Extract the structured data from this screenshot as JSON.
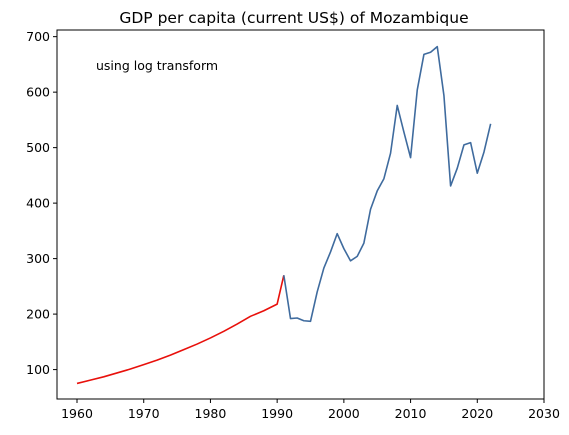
{
  "chart_data": {
    "type": "line",
    "title": "GDP per capita (current US$) of Mozambique",
    "xlabel": "",
    "ylabel": "",
    "annotation": "using log transform",
    "xlim": [
      1957,
      2030
    ],
    "ylim": [
      47,
      712
    ],
    "xticks": [
      1960,
      1970,
      1980,
      1990,
      2000,
      2010,
      2020,
      2030
    ],
    "yticks": [
      100,
      200,
      300,
      400,
      500,
      600,
      700
    ],
    "grid": false,
    "series": [
      {
        "color": "#e8100b",
        "x": [
          1960,
          1962,
          1964,
          1966,
          1968,
          1970,
          1972,
          1974,
          1976,
          1978,
          1980,
          1982,
          1984,
          1986,
          1988,
          1990,
          1991
        ],
        "y": [
          75,
          81,
          87,
          94,
          101,
          109,
          117,
          126,
          136,
          146,
          157,
          169,
          182,
          196,
          206,
          218,
          270
        ]
      },
      {
        "color": "#3f6b9e",
        "x": [
          1991,
          1992,
          1993,
          1994,
          1995,
          1996,
          1997,
          1998,
          1999,
          2000,
          2001,
          2002,
          2003,
          2004,
          2005,
          2006,
          2007,
          2008,
          2009,
          2010,
          2011,
          2012,
          2013,
          2014,
          2015,
          2016,
          2017,
          2018,
          2019,
          2020,
          2021,
          2022
        ],
        "y": [
          270,
          192,
          193,
          188,
          187,
          240,
          283,
          312,
          345,
          318,
          296,
          304,
          328,
          389,
          422,
          444,
          490,
          576,
          528,
          482,
          604,
          668,
          672,
          682,
          594,
          431,
          463,
          505,
          509,
          454,
          492,
          543
        ]
      }
    ]
  }
}
